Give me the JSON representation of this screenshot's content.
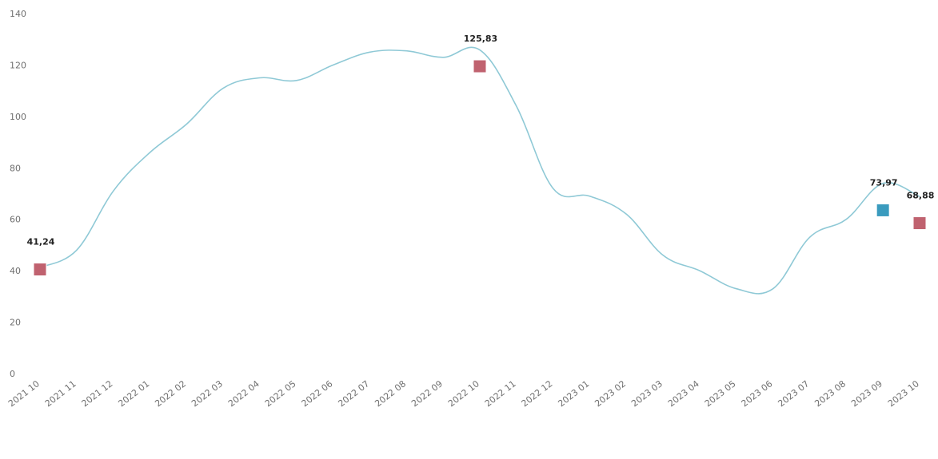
{
  "chart_data": {
    "type": "line",
    "title": "",
    "xlabel": "",
    "ylabel": "",
    "ylim": [
      0,
      140
    ],
    "yticks": [
      0,
      20,
      40,
      60,
      80,
      100,
      120,
      140
    ],
    "ytick_labels": [
      "0",
      "20",
      "40",
      "60",
      "80",
      "100",
      "120",
      "140"
    ],
    "grid": false,
    "legend": "none",
    "categories": [
      "2021 10",
      "2021 11",
      "2021 12",
      "2022 01",
      "2022 02",
      "2022 03",
      "2022 04",
      "2022 05",
      "2022 06",
      "2022 07",
      "2022 08",
      "2022 09",
      "2022 10",
      "2022 11",
      "2022 12",
      "2023 01",
      "2023 02",
      "2023 03",
      "2023 04",
      "2023 05",
      "2023 06",
      "2023 07",
      "2023 08",
      "2023 09",
      "2023 10"
    ],
    "series": [
      {
        "values": [
          41.24,
          48,
          71,
          86,
          97,
          111,
          115,
          114,
          120,
          125,
          125.5,
          123,
          125.83,
          104,
          72,
          69,
          62,
          46,
          40,
          33,
          33,
          53,
          60,
          73.97,
          68.88
        ],
        "line_color": "#8fc9d6"
      }
    ],
    "markers": [
      {
        "index": 0,
        "label": "41,24",
        "color": "#c0626f",
        "plot_value": 40.5
      },
      {
        "index": 12,
        "label": "125,83",
        "color": "#c0626f",
        "plot_value": 119.5
      },
      {
        "index": 23,
        "label": "73,97",
        "color": "#3a9bbe",
        "plot_value": 63.5
      },
      {
        "index": 24,
        "label": "68,88",
        "color": "#c0626f",
        "plot_value": 58.5
      }
    ]
  }
}
